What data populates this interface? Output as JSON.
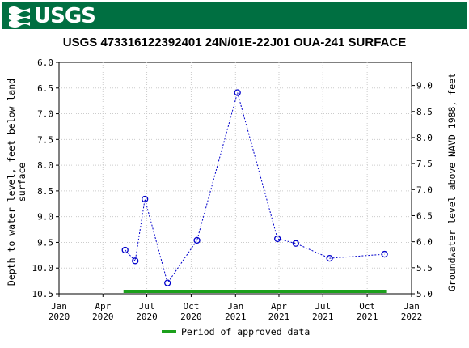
{
  "header": {
    "logo_text": "USGS",
    "logo_icon": "usgs-wave-icon"
  },
  "chart_data": {
    "type": "scatter",
    "title": "USGS 473316122392401 24N/01E-22J01 OUA-241 SURFACE",
    "ylabel_left": "Depth to water level, feet below land surface",
    "ylabel_left_lines": [
      "Depth to water level, feet below land",
      "surface"
    ],
    "ylabel_right": "Groundwater level above NAVD 1988, feet",
    "y_left_range": [
      6.0,
      10.5
    ],
    "y_left_inverted": true,
    "y_left_ticks": [
      "6.0",
      "6.5",
      "7.0",
      "7.5",
      "8.0",
      "8.5",
      "9.0",
      "9.5",
      "10.0",
      "10.5"
    ],
    "y_right_range": [
      5.0,
      9.0
    ],
    "y_right_ticks": [
      "5.0",
      "5.5",
      "6.0",
      "6.5",
      "7.0",
      "7.5",
      "8.0",
      "8.5",
      "9.0"
    ],
    "x_range": [
      "2020-01-01",
      "2022-01-01"
    ],
    "x_ticks": [
      {
        "date": "2020-01-01",
        "line1": "Jan",
        "line2": "2020"
      },
      {
        "date": "2020-04-01",
        "line1": "Apr",
        "line2": "2020"
      },
      {
        "date": "2020-07-01",
        "line1": "Jul",
        "line2": "2020"
      },
      {
        "date": "2020-10-01",
        "line1": "Oct",
        "line2": "2020"
      },
      {
        "date": "2021-01-01",
        "line1": "Jan",
        "line2": "2021"
      },
      {
        "date": "2021-04-01",
        "line1": "Apr",
        "line2": "2021"
      },
      {
        "date": "2021-07-01",
        "line1": "Jul",
        "line2": "2021"
      },
      {
        "date": "2021-10-01",
        "line1": "Oct",
        "line2": "2021"
      },
      {
        "date": "2022-01-01",
        "line1": "Jan",
        "line2": "2022"
      }
    ],
    "series": [
      {
        "points": [
          {
            "date": "2020-05-17",
            "value": 9.65
          },
          {
            "date": "2020-06-07",
            "value": 9.86
          },
          {
            "date": "2020-06-27",
            "value": 8.66
          },
          {
            "date": "2020-08-13",
            "value": 10.29
          },
          {
            "date": "2020-10-13",
            "value": 9.46
          },
          {
            "date": "2021-01-05",
            "value": 6.59
          },
          {
            "date": "2021-03-29",
            "value": 9.43
          },
          {
            "date": "2021-05-06",
            "value": 9.52
          },
          {
            "date": "2021-07-15",
            "value": 9.81
          },
          {
            "date": "2021-11-06",
            "value": 9.73
          }
        ],
        "color": "#0000cc"
      }
    ],
    "approved_period": {
      "start": "2020-05-17",
      "end": "2021-11-06",
      "color": "#1ca01c"
    },
    "legend_label": "Period of approved data",
    "grid": true,
    "legend_position": "bottom"
  }
}
